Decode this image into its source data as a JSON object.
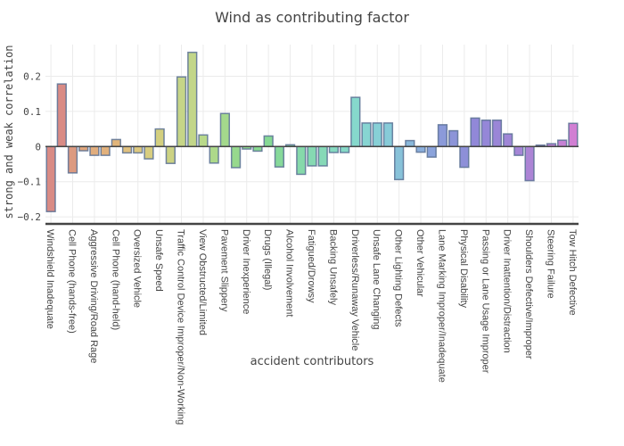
{
  "chart_data": {
    "type": "bar",
    "title": "Wind as contributing factor",
    "xlabel": "accident contributors",
    "ylabel": "strong and weak correlation",
    "ylim": [
      -0.22,
      0.29
    ],
    "yticks": [
      -0.2,
      -0.1,
      0,
      0.1,
      0.2
    ],
    "ytick_labels": [
      "−0.2",
      "−0.1",
      "0",
      "0.1",
      "0.2"
    ],
    "grid": true,
    "legend": "none",
    "categories": [
      "Windshield Inadequate",
      "",
      "Cell Phone (hands-free)",
      "",
      "Aggressive Driving/Road Rage",
      "",
      "Cell Phone (hand-held)",
      "",
      "Oversized Vehicle",
      "",
      "Unsafe Speed",
      "",
      "Traffic Control Device Improper/Non-Working",
      "",
      "View Obstructed/Limited",
      "",
      "Pavement Slippery",
      "",
      "Driver Inexperience",
      "",
      "Drugs (Illegal)",
      "",
      "Alcohol Involvement",
      "",
      "Fatigued/Drowsy",
      "",
      "Backing Unsafely",
      "",
      "Driverless/Runaway Vehicle",
      "",
      "Unsafe Lane Changing",
      "",
      "Other Lighting Defects",
      "",
      "Other Vehicular",
      "",
      "Lane Marking Improper/Inadequate",
      "",
      "Physical Disability",
      "",
      "Passing or Lane Usage Improper",
      "",
      "Driver Inattention/Distraction",
      "",
      "Shoulders Defective/Improper",
      "",
      "Steering Failure",
      "",
      "Tow Hitch Defective"
    ],
    "values": [
      -0.185,
      0.178,
      -0.075,
      -0.012,
      -0.025,
      -0.025,
      0.02,
      -0.018,
      -0.018,
      -0.035,
      0.05,
      -0.048,
      0.198,
      0.268,
      0.033,
      -0.047,
      0.094,
      -0.06,
      -0.007,
      -0.013,
      0.03,
      -0.058,
      0.005,
      -0.079,
      -0.055,
      -0.055,
      -0.017,
      -0.017,
      0.14,
      0.067,
      0.067,
      0.067,
      -0.094,
      0.017,
      -0.016,
      -0.03,
      0.062,
      0.045,
      -0.059,
      0.081,
      0.075,
      0.075,
      0.036,
      -0.025,
      -0.097,
      0.004,
      0.008,
      0.018,
      0.066
    ],
    "colors": [
      "#d98b85",
      "#d98b85",
      "#dc9a80",
      "#e0a67c",
      "#e1ad7d",
      "#e2b17c",
      "#e1b57a",
      "#e0c07e",
      "#ddc87f",
      "#d8cd7f",
      "#d3cf7f",
      "#ccd283",
      "#c6d587",
      "#c2d689",
      "#b9d98a",
      "#add98a",
      "#a4d98c",
      "#97d98d",
      "#90d98e",
      "#8ad990",
      "#86d994",
      "#86d99a",
      "#86d9a2",
      "#86d9aa",
      "#86d9b2",
      "#86d9b7",
      "#86d9bf",
      "#86d9c6",
      "#86d8cc",
      "#87d5d2",
      "#87d0d6",
      "#87cbd8",
      "#88c2d9",
      "#89b8da",
      "#8aaedb",
      "#8ba3db",
      "#8b9ad9",
      "#8c94d8",
      "#8d8fd8",
      "#9188d8",
      "#9587d8",
      "#9a86d7",
      "#9f86d6",
      "#a585d6",
      "#ac84d5",
      "#b383d5",
      "#bb82d4",
      "#c681d4",
      "#d17fd3"
    ]
  }
}
